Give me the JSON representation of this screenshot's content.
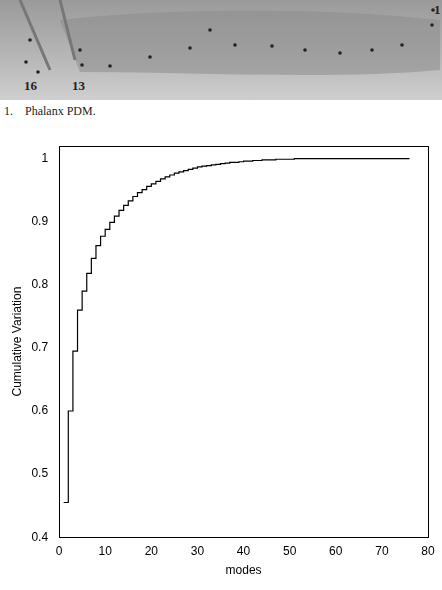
{
  "figure_fragment": {
    "point_labels": [
      "16",
      "13",
      "1"
    ],
    "caption": "1.    Phalanx PDM."
  },
  "chart_data": {
    "type": "step",
    "x_label": "modes",
    "y_label": "Cumulative Variation",
    "x": [
      1,
      2,
      3,
      4,
      5,
      6,
      7,
      8,
      9,
      10,
      11,
      12,
      13,
      14,
      15,
      16,
      17,
      18,
      19,
      20,
      21,
      22,
      23,
      24,
      25,
      26,
      27,
      28,
      29,
      30,
      31,
      32,
      33,
      34,
      35,
      36,
      37,
      38,
      39,
      40,
      41,
      42,
      43,
      44,
      45,
      46,
      47,
      48,
      49,
      50,
      51,
      52,
      53,
      54,
      55,
      56,
      57,
      58,
      59,
      60,
      61,
      62,
      63,
      64,
      65,
      66,
      67,
      68,
      69,
      70,
      71,
      72,
      73,
      74,
      75,
      76
    ],
    "values": [
      0.455,
      0.6,
      0.695,
      0.76,
      0.79,
      0.818,
      0.842,
      0.862,
      0.877,
      0.888,
      0.899,
      0.909,
      0.918,
      0.926,
      0.933,
      0.94,
      0.946,
      0.951,
      0.956,
      0.96,
      0.964,
      0.968,
      0.971,
      0.974,
      0.977,
      0.979,
      0.981,
      0.983,
      0.985,
      0.987,
      0.988,
      0.989,
      0.99,
      0.991,
      0.992,
      0.993,
      0.994,
      0.994,
      0.995,
      0.996,
      0.996,
      0.997,
      0.997,
      0.998,
      0.998,
      0.998,
      0.999,
      0.999,
      0.999,
      0.999,
      1,
      1,
      1,
      1,
      1,
      1,
      1,
      1,
      1,
      1,
      1,
      1,
      1,
      1,
      1,
      1,
      1,
      1,
      1,
      1,
      1,
      1,
      1,
      1,
      1,
      1
    ],
    "color": "#000000",
    "xlim": [
      0,
      80
    ],
    "xticks": [
      0,
      10,
      20,
      30,
      40,
      50,
      60,
      70,
      80
    ],
    "ylim": [
      0.4,
      1.02
    ],
    "yticks": [
      0.4,
      0.5,
      0.6,
      0.7,
      0.8,
      0.9,
      1
    ],
    "grid": false
  }
}
